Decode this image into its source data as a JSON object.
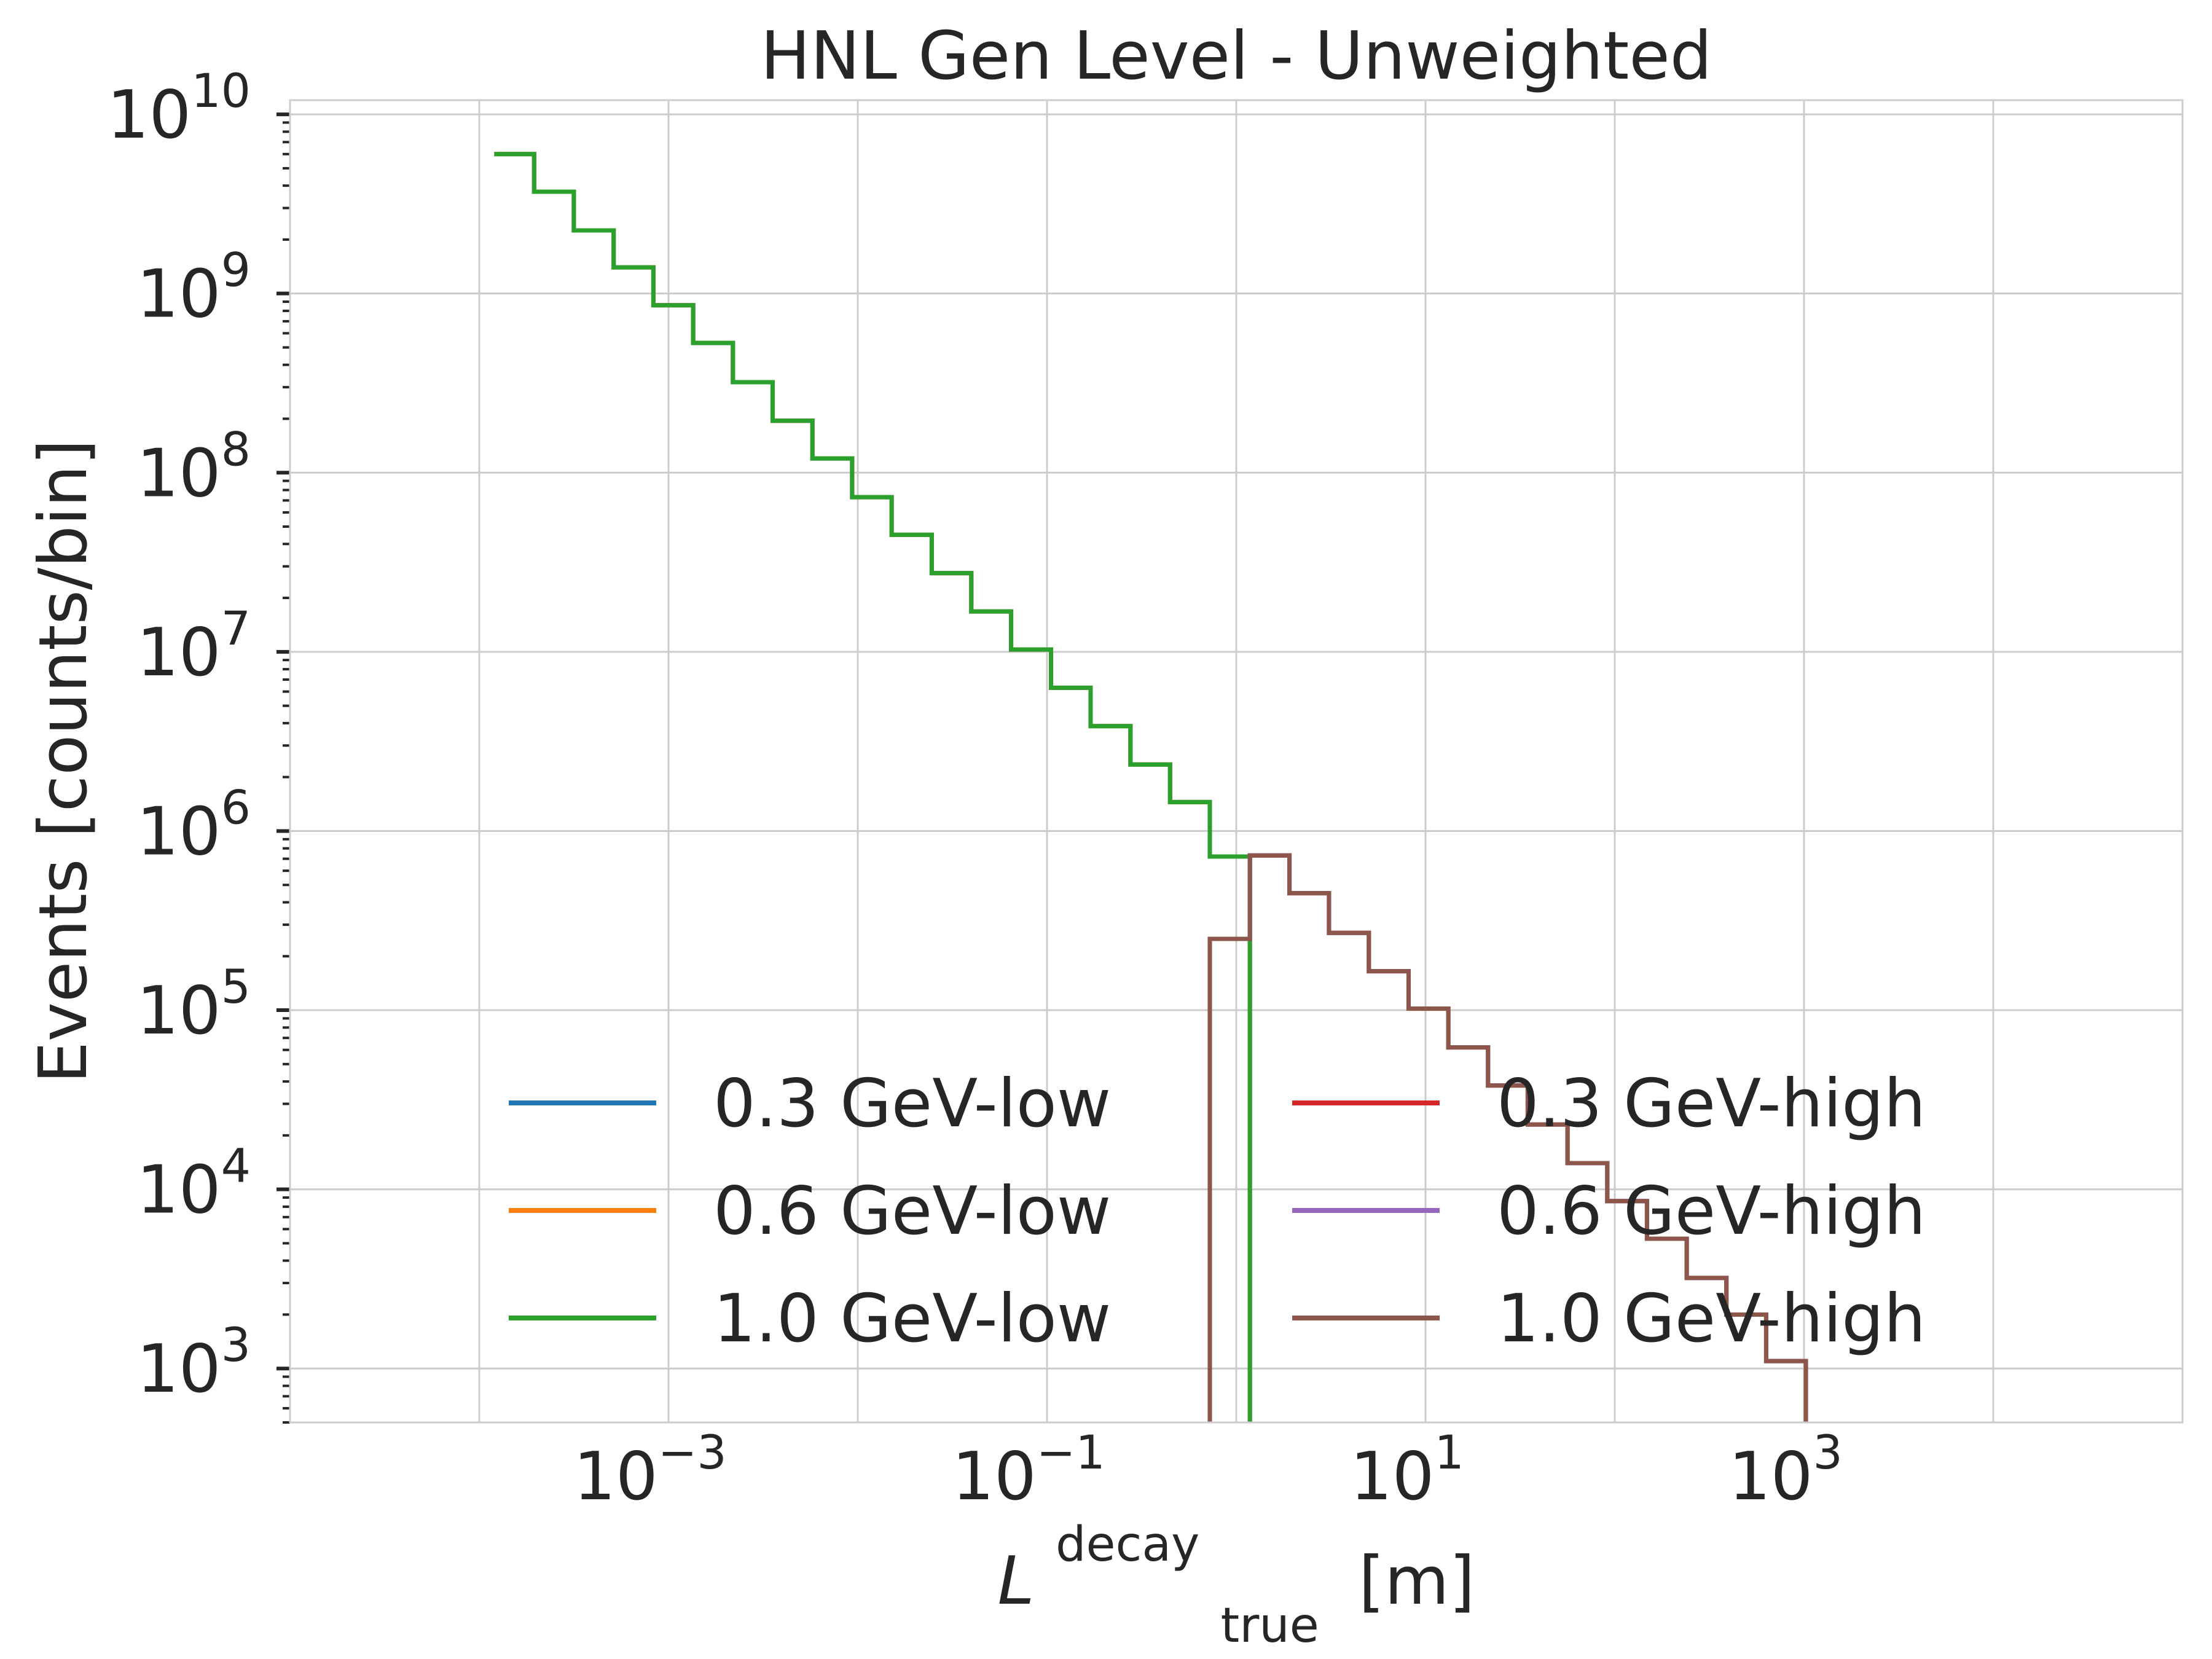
{
  "chart_data": {
    "type": "line",
    "subtype": "step-histogram",
    "title": "HNL Gen Level - Unweighted",
    "xlabel": {
      "symbol": "L",
      "sub": "true",
      "sup": "decay",
      "unit": "[m]"
    },
    "ylabel": "Events [counts/bin]",
    "xscale": "log",
    "yscale": "log",
    "xlim": [
      1e-05,
      100000
    ],
    "ylim": [
      500,
      12000000000
    ],
    "grid": true,
    "legend_position": "lower-right",
    "x_tick_labels": [
      {
        "value": 0.001,
        "base": "10",
        "exp": "−3"
      },
      {
        "value": 0.1,
        "base": "10",
        "exp": "−1"
      },
      {
        "value": 10,
        "base": "10",
        "exp": "1"
      },
      {
        "value": 1000,
        "base": "10",
        "exp": "3"
      }
    ],
    "y_tick_labels": [
      {
        "value": 1000,
        "base": "10",
        "exp": "3"
      },
      {
        "value": 10000,
        "base": "10",
        "exp": "4"
      },
      {
        "value": 100000,
        "base": "10",
        "exp": "5"
      },
      {
        "value": 1000000,
        "base": "10",
        "exp": "6"
      },
      {
        "value": 10000000,
        "base": "10",
        "exp": "7"
      },
      {
        "value": 100000000,
        "base": "10",
        "exp": "8"
      },
      {
        "value": 1000000000,
        "base": "10",
        "exp": "9"
      },
      {
        "value": 10000000000,
        "base": "10",
        "exp": "10"
      }
    ],
    "bins_low": [
      0.00012,
      0.000195,
      0.000316,
      0.000513,
      0.000832,
      0.00135,
      0.00219,
      0.00355,
      0.00576,
      0.00934,
      0.0151,
      0.0246,
      0.0398,
      0.0646,
      0.105,
      0.17,
      0.276,
      0.447,
      0.725,
      1.18
    ],
    "bins_high": [
      0.725,
      1.18,
      1.91,
      3.09,
      5.02,
      8.14,
      13.2,
      21.4,
      34.7,
      56.3,
      91.3,
      148,
      240,
      389,
      631,
      1023
    ],
    "series": [
      {
        "name": "0.3 GeV-low",
        "color": "#1f77b4",
        "values": [
          6000000000,
          3700000000,
          2250000000,
          1400000000,
          860000000,
          530000000,
          320000000,
          195000000,
          120000000,
          73000000,
          45000000,
          27500000,
          16800000,
          10300000,
          6300000,
          3850000,
          2350000,
          1450000,
          720000
        ]
      },
      {
        "name": "0.6 GeV-low",
        "color": "#ff7f0e",
        "values": [
          6000000000,
          3700000000,
          2250000000,
          1400000000,
          860000000,
          530000000,
          320000000,
          195000000,
          120000000,
          73000000,
          45000000,
          27500000,
          16800000,
          10300000,
          6300000,
          3850000,
          2350000,
          1450000,
          720000
        ]
      },
      {
        "name": "1.0 GeV-low",
        "color": "#2ca02c",
        "values": [
          6000000000,
          3700000000,
          2250000000,
          1400000000,
          860000000,
          530000000,
          320000000,
          195000000,
          120000000,
          73000000,
          45000000,
          27500000,
          16800000,
          10300000,
          6300000,
          3850000,
          2350000,
          1450000,
          720000
        ]
      },
      {
        "name": "0.3 GeV-high",
        "color": "#d62728",
        "values": [
          250000,
          730000,
          450000,
          270000,
          165000,
          102000,
          62000,
          38000,
          23000,
          14000,
          8600,
          5300,
          3200,
          2000,
          1100
        ]
      },
      {
        "name": "0.6 GeV-high",
        "color": "#9467bd",
        "values": [
          250000,
          730000,
          450000,
          270000,
          165000,
          102000,
          62000,
          38000,
          23000,
          14000,
          8600,
          5300,
          3200,
          2000,
          1100
        ]
      },
      {
        "name": "1.0 GeV-high",
        "color": "#8c564b",
        "values": [
          250000,
          730000,
          450000,
          270000,
          165000,
          102000,
          62000,
          38000,
          23000,
          14000,
          8600,
          5300,
          3200,
          2000,
          1100
        ]
      }
    ]
  }
}
